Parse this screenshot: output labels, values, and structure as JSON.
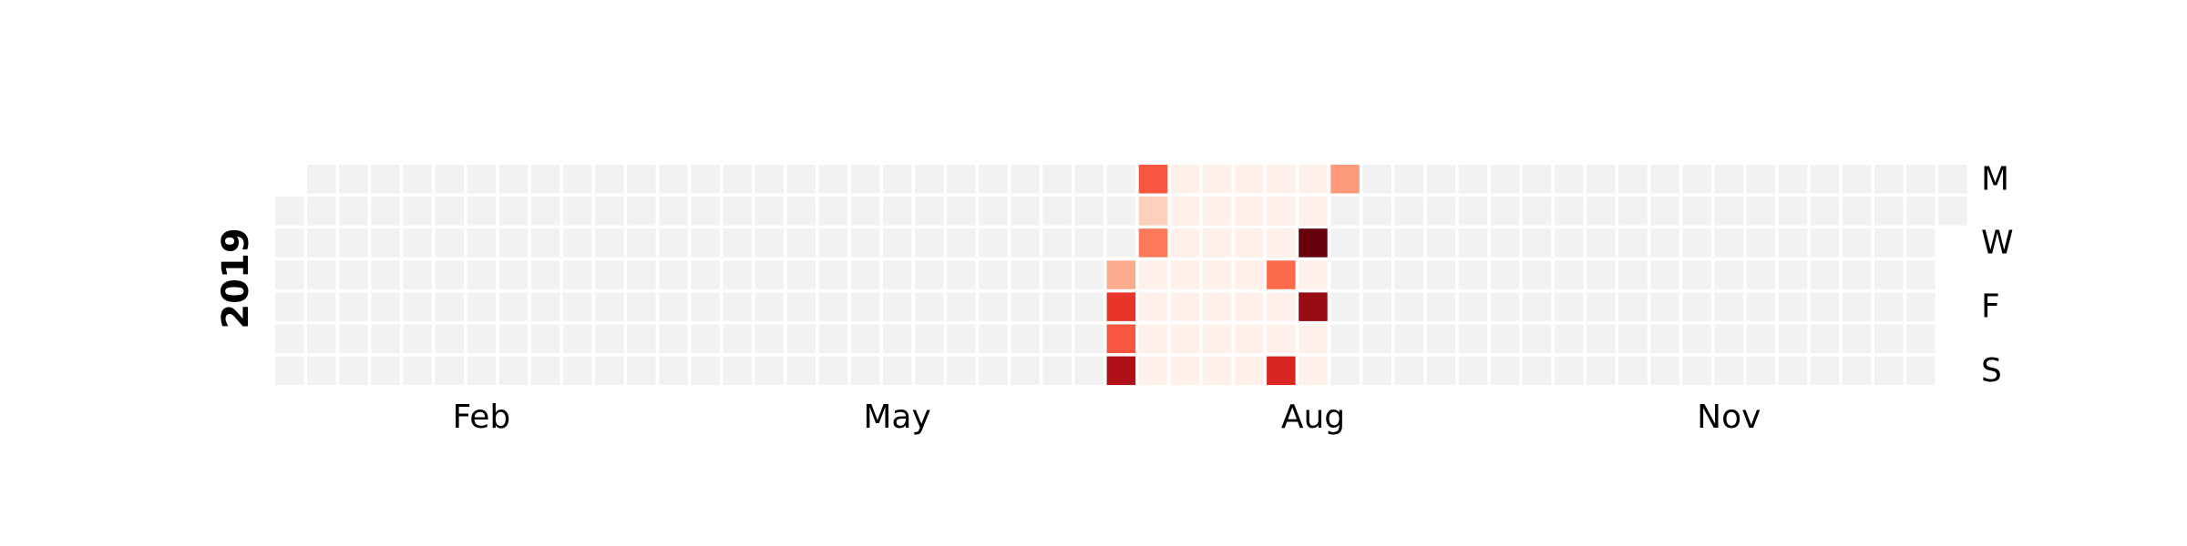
{
  "chart_data": {
    "type": "heatmap",
    "subtype": "calendar",
    "year_label": "2019",
    "first_day": "2019-01-01",
    "last_day": "2019-12-31",
    "week_start": "Monday",
    "weekday_labels": [
      {
        "row": 0,
        "text": "M"
      },
      {
        "row": 2,
        "text": "W"
      },
      {
        "row": 4,
        "text": "F"
      },
      {
        "row": 6,
        "text": "S"
      }
    ],
    "month_labels": [
      "Feb",
      "May",
      "Aug",
      "Nov"
    ],
    "month_label_months": [
      2,
      5,
      8,
      11
    ],
    "colormap": "Reds",
    "colors": {
      "empty": "#f2f2f2",
      "scale": [
        "#fff5f0",
        "#fee0d2",
        "#fcbba1",
        "#fc9272",
        "#fb6a4a",
        "#ef3b2c",
        "#cb181d",
        "#a50f15",
        "#67000d"
      ]
    },
    "value_range": [
      0,
      1
    ],
    "default_in_range_value": 0.03,
    "in_range_period": [
      "2019-07-08",
      "2019-08-18"
    ],
    "values": [
      {
        "date": "2019-07-08",
        "value": 0.55
      },
      {
        "date": "2019-07-09",
        "value": 0.18
      },
      {
        "date": "2019-07-10",
        "value": 0.45
      },
      {
        "date": "2019-07-04",
        "value": 0.3
      },
      {
        "date": "2019-07-05",
        "value": 0.65
      },
      {
        "date": "2019-07-06",
        "value": 0.55
      },
      {
        "date": "2019-07-07",
        "value": 0.85
      },
      {
        "date": "2019-08-08",
        "value": 0.5
      },
      {
        "date": "2019-08-11",
        "value": 0.7
      },
      {
        "date": "2019-08-14",
        "value": 1.0
      },
      {
        "date": "2019-08-16",
        "value": 0.9
      },
      {
        "date": "2019-08-19",
        "value": 0.35
      }
    ]
  }
}
